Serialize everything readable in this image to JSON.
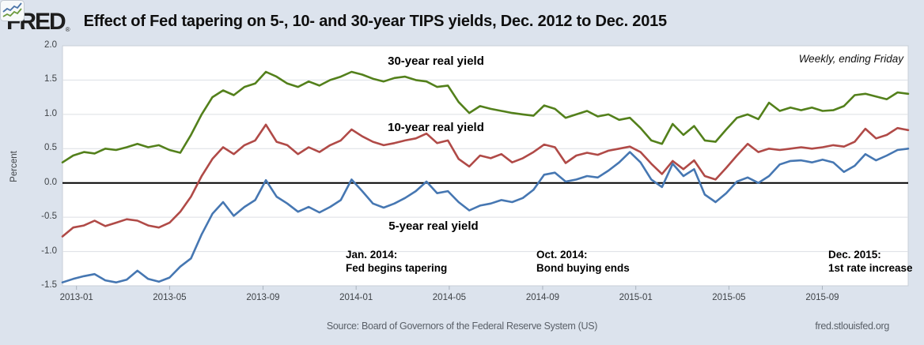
{
  "header": {
    "logo_text": "FRED",
    "registered_mark": "®",
    "title": "Effect of Fed tapering on 5-, 10- and 30-year TIPS yields, Dec. 2012 to Dec. 2015"
  },
  "footer": {
    "source": "Source: Board of Governors of the Federal Reserve System (US)",
    "site": "fred.stlouisfed.org"
  },
  "chart_data": {
    "type": "line",
    "title": "Effect of Fed tapering on 5-, 10- and 30-year TIPS yields, Dec. 2012 to Dec. 2015",
    "note": "Weekly, ending Friday",
    "frequency": "Weekly, ending Friday",
    "ylabel": "Percent",
    "ylim": [
      -1.5,
      2.0
    ],
    "grid": "horizontal-only",
    "zero_line": 0.0,
    "y_ticks": [
      {
        "v": 2.0,
        "label": "2.0"
      },
      {
        "v": 1.5,
        "label": "1.5"
      },
      {
        "v": 1.0,
        "label": "1.0"
      },
      {
        "v": 0.5,
        "label": "0.5"
      },
      {
        "v": 0.0,
        "label": "0.0"
      },
      {
        "v": -0.5,
        "label": "-0.5"
      },
      {
        "v": -1.0,
        "label": "-1.0"
      },
      {
        "v": -1.5,
        "label": "-1.5"
      }
    ],
    "y_gridlines": [
      1.5,
      1.0,
      0.5,
      -0.5,
      -1.0
    ],
    "x_ticks": [
      {
        "t": 2013.0,
        "label": "2013-01"
      },
      {
        "t": 2013.333,
        "label": "2013-05"
      },
      {
        "t": 2013.667,
        "label": "2013-09"
      },
      {
        "t": 2014.0,
        "label": "2014-01"
      },
      {
        "t": 2014.333,
        "label": "2014-05"
      },
      {
        "t": 2014.667,
        "label": "2014-09"
      },
      {
        "t": 2015.0,
        "label": "2015-01"
      },
      {
        "t": 2015.333,
        "label": "2015-05"
      },
      {
        "t": 2015.667,
        "label": "2015-09"
      }
    ],
    "x_start_decimal_year": 2012.95,
    "x_step_decimal_year": 0.03828,
    "x_range": [
      "Dec. 2012",
      "Dec. 2015"
    ],
    "series": [
      {
        "name": "30-year real yield",
        "color": "#53801b",
        "values": [
          0.3,
          0.4,
          0.45,
          0.43,
          0.5,
          0.48,
          0.52,
          0.57,
          0.52,
          0.55,
          0.48,
          0.44,
          0.7,
          1.0,
          1.25,
          1.35,
          1.28,
          1.4,
          1.45,
          1.62,
          1.55,
          1.45,
          1.4,
          1.48,
          1.42,
          1.5,
          1.55,
          1.62,
          1.58,
          1.52,
          1.48,
          1.53,
          1.55,
          1.5,
          1.48,
          1.4,
          1.42,
          1.18,
          1.02,
          1.12,
          1.08,
          1.05,
          1.02,
          1.0,
          0.98,
          1.13,
          1.08,
          0.95,
          1.0,
          1.05,
          0.97,
          1.0,
          0.92,
          0.95,
          0.8,
          0.62,
          0.57,
          0.86,
          0.7,
          0.83,
          0.62,
          0.6,
          0.78,
          0.95,
          1.0,
          0.93,
          1.17,
          1.05,
          1.1,
          1.06,
          1.1,
          1.05,
          1.06,
          1.12,
          1.28,
          1.3,
          1.26,
          1.22,
          1.32,
          1.3
        ]
      },
      {
        "name": "10-year real yield",
        "color": "#b04a47",
        "values": [
          -0.78,
          -0.65,
          -0.62,
          -0.55,
          -0.63,
          -0.58,
          -0.53,
          -0.55,
          -0.62,
          -0.65,
          -0.58,
          -0.42,
          -0.2,
          0.1,
          0.35,
          0.52,
          0.42,
          0.55,
          0.62,
          0.85,
          0.6,
          0.55,
          0.42,
          0.52,
          0.45,
          0.55,
          0.62,
          0.78,
          0.68,
          0.6,
          0.55,
          0.58,
          0.62,
          0.65,
          0.72,
          0.58,
          0.62,
          0.35,
          0.24,
          0.4,
          0.36,
          0.42,
          0.3,
          0.36,
          0.45,
          0.56,
          0.52,
          0.29,
          0.4,
          0.44,
          0.41,
          0.47,
          0.5,
          0.53,
          0.45,
          0.28,
          0.13,
          0.32,
          0.2,
          0.33,
          0.1,
          0.05,
          0.22,
          0.4,
          0.57,
          0.45,
          0.5,
          0.48,
          0.5,
          0.52,
          0.5,
          0.52,
          0.55,
          0.53,
          0.6,
          0.79,
          0.65,
          0.7,
          0.8,
          0.77
        ]
      },
      {
        "name": "5-year real yield",
        "color": "#4677b2",
        "values": [
          -1.45,
          -1.4,
          -1.36,
          -1.33,
          -1.42,
          -1.45,
          -1.41,
          -1.28,
          -1.4,
          -1.44,
          -1.38,
          -1.22,
          -1.1,
          -0.75,
          -0.45,
          -0.28,
          -0.48,
          -0.35,
          -0.25,
          0.04,
          -0.2,
          -0.3,
          -0.42,
          -0.35,
          -0.43,
          -0.35,
          -0.25,
          0.05,
          -0.12,
          -0.3,
          -0.36,
          -0.3,
          -0.22,
          -0.12,
          0.02,
          -0.15,
          -0.12,
          -0.28,
          -0.4,
          -0.33,
          -0.3,
          -0.25,
          -0.28,
          -0.22,
          -0.1,
          0.12,
          0.15,
          0.02,
          0.05,
          0.1,
          0.08,
          0.18,
          0.3,
          0.45,
          0.3,
          0.05,
          -0.06,
          0.28,
          0.1,
          0.2,
          -0.17,
          -0.28,
          -0.15,
          0.02,
          0.08,
          0.0,
          0.1,
          0.27,
          0.32,
          0.33,
          0.3,
          0.34,
          0.3,
          0.16,
          0.25,
          0.42,
          0.33,
          0.4,
          0.48,
          0.5
        ]
      }
    ],
    "events": [
      {
        "line1": "Jan. 2014:",
        "line2": "Fed begins tapering"
      },
      {
        "line1": "Oct. 2014:",
        "line2": "Bond buying ends"
      },
      {
        "line1": "Dec. 2015:",
        "line2": "1st rate increase"
      }
    ],
    "colors": {
      "green_30yr": "#53801b",
      "red_10yr": "#b04a47",
      "blue_5yr": "#4677b2",
      "background": "#dce3ed",
      "zero_line": "#000000"
    }
  }
}
